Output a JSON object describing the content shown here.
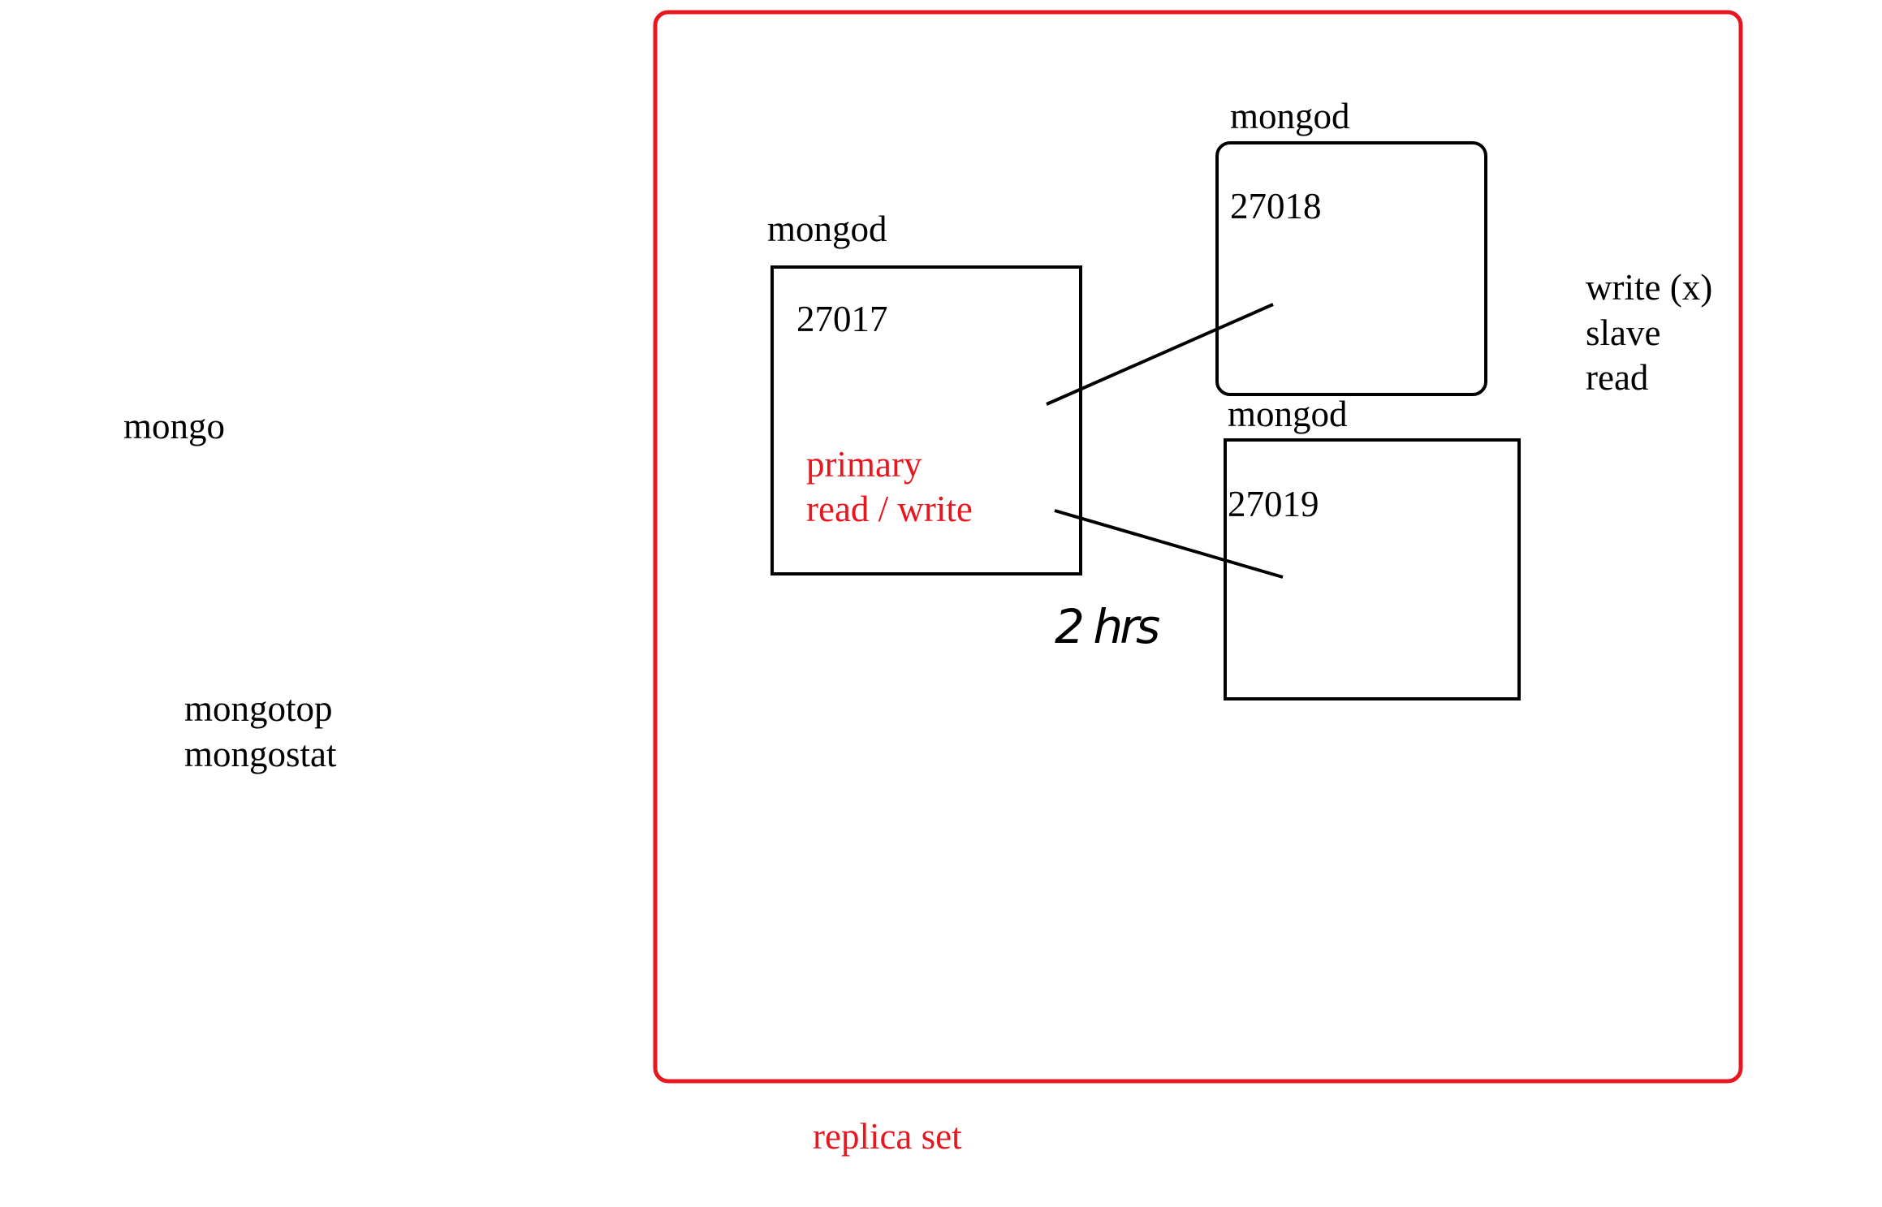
{
  "client": {
    "shell": "mongo",
    "tools": [
      "mongotop",
      "mongostat"
    ]
  },
  "replica_set": {
    "label": "replica set",
    "nodes": [
      {
        "label": "mongod",
        "port": "27017",
        "role": "primary",
        "access": "read / write"
      },
      {
        "label": "mongod",
        "port": "27018"
      },
      {
        "label": "mongod",
        "port": "27019"
      }
    ],
    "secondary_notes": [
      "write (x)",
      "slave",
      "read"
    ],
    "annotation": "2 hrs"
  }
}
